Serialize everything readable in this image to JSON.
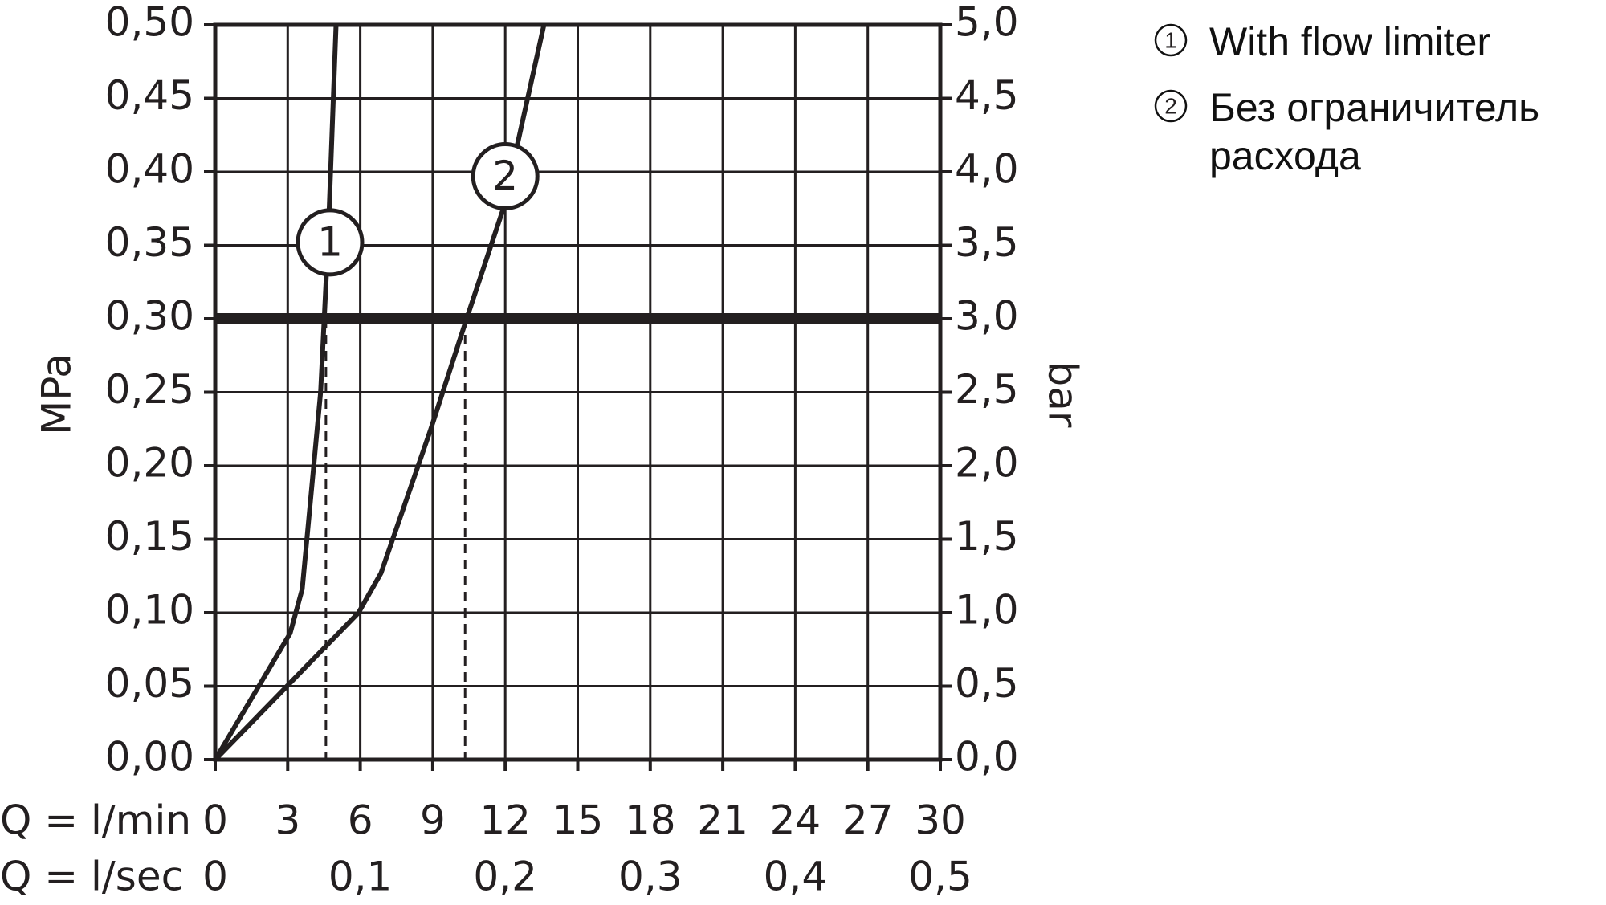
{
  "chart_data": {
    "type": "line",
    "y_label": "MPa",
    "y2_label": "bar",
    "x_label": "Q = l/min",
    "x2_label": "Q = l/sec",
    "series": [
      {
        "name": "With flow limiter",
        "label": "1",
        "color": "#231f20",
        "x": [
          0,
          3.1,
          3.6,
          4.36,
          4.66,
          5.0
        ],
        "values": [
          0,
          0.086,
          0.116,
          0.25,
          0.35,
          0.5
        ]
      },
      {
        "name": "Без ограничитель расхода",
        "label": "2",
        "color": "#231f20",
        "x": [
          0,
          2.97,
          5.93,
          6.86,
          8.9,
          10.4,
          11.9,
          13.6
        ],
        "values": [
          0,
          0.05,
          0.1,
          0.127,
          0.224,
          0.3,
          0.374,
          0.5
        ]
      }
    ],
    "annotations": [
      {
        "series": 0,
        "x": 4.75,
        "y": 0.352
      },
      {
        "series": 1,
        "x": 12.0,
        "y": 0.397
      }
    ],
    "reference_y": 0.3,
    "drop_lines": [
      4.58,
      10.34
    ],
    "xlim": [
      0,
      30
    ],
    "xticks": [
      0,
      3,
      6,
      9,
      12,
      15,
      18,
      21,
      24,
      27,
      30
    ],
    "x2lim": [
      0,
      0.5
    ],
    "x2ticks": [
      0,
      {
        "value": 0.1,
        "label": "0,1"
      },
      {
        "value": 0.2,
        "label": "0,2"
      },
      {
        "value": 0.3,
        "label": "0,3"
      },
      {
        "value": 0.4,
        "label": "0,4"
      },
      {
        "value": 0.5,
        "label": "0,5"
      }
    ],
    "ylim": [
      0,
      0.5
    ],
    "yticks": [
      {
        "value": 0,
        "label": "0,00"
      },
      {
        "value": 0.05,
        "label": "0,05"
      },
      {
        "value": 0.1,
        "label": "0,10"
      },
      {
        "value": 0.15,
        "label": "0,15"
      },
      {
        "value": 0.2,
        "label": "0,20"
      },
      {
        "value": 0.25,
        "label": "0,25"
      },
      {
        "value": 0.3,
        "label": "0,30"
      },
      {
        "value": 0.35,
        "label": "0,35"
      },
      {
        "value": 0.4,
        "label": "0,40"
      },
      {
        "value": 0.45,
        "label": "0,45"
      },
      {
        "value": 0.5,
        "label": "0,50"
      }
    ],
    "y2lim": [
      0,
      5
    ],
    "y2ticks": [
      {
        "value": 0,
        "label": "0,0"
      },
      {
        "value": 0.5,
        "label": "0,5"
      },
      {
        "value": 1,
        "label": "1,0"
      },
      {
        "value": 1.5,
        "label": "1,5"
      },
      {
        "value": 2,
        "label": "2,0"
      },
      {
        "value": 2.5,
        "label": "2,5"
      },
      {
        "value": 3,
        "label": "3,0"
      },
      {
        "value": 3.5,
        "label": "3,5"
      },
      {
        "value": 4,
        "label": "4,0"
      },
      {
        "value": 4.5,
        "label": "4,5"
      },
      {
        "value": 5,
        "label": "5,0"
      }
    ],
    "grid": true
  }
}
